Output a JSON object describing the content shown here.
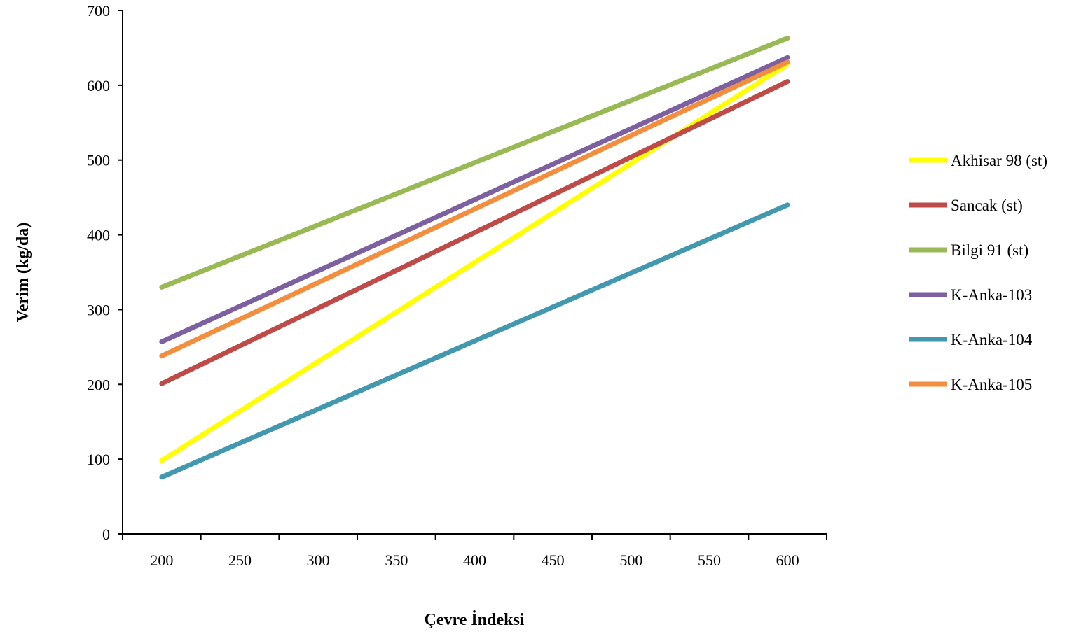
{
  "chart_data": {
    "type": "line",
    "title": "",
    "xlabel": "Çevre İndeksi",
    "ylabel": "Verim (kg/da)",
    "xlim": [
      175,
      625
    ],
    "ylim": [
      0,
      700
    ],
    "x_ticks": [
      200,
      250,
      300,
      350,
      400,
      450,
      500,
      550,
      600
    ],
    "y_ticks": [
      0,
      100,
      200,
      300,
      400,
      500,
      600,
      700
    ],
    "grid": false,
    "legend_position": "right",
    "series": [
      {
        "name": "Akhisar 98 (st)",
        "color": "#FFFF00",
        "x": [
          200,
          600
        ],
        "values": [
          98,
          628
        ]
      },
      {
        "name": "Sancak (st)",
        "color": "#BE4B48",
        "x": [
          200,
          600
        ],
        "values": [
          201,
          605
        ]
      },
      {
        "name": "Bilgi 91 (st)",
        "color": "#98B954",
        "x": [
          200,
          600
        ],
        "values": [
          330,
          663
        ]
      },
      {
        "name": "K-Anka-103",
        "color": "#7D60A0",
        "x": [
          200,
          600
        ],
        "values": [
          257,
          637
        ]
      },
      {
        "name": "K-Anka-104",
        "color": "#4198AF",
        "x": [
          200,
          600
        ],
        "values": [
          76,
          440
        ]
      },
      {
        "name": "K-Anka-105",
        "color": "#F38E3E",
        "x": [
          200,
          600
        ],
        "values": [
          238,
          631
        ]
      }
    ]
  }
}
